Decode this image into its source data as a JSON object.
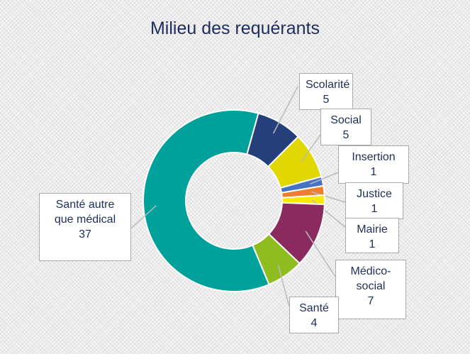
{
  "chart_data": {
    "type": "donut",
    "title": "Milieu des requérants",
    "categories": [
      "Scolarité",
      "Social",
      "Insertion",
      "Justice",
      "Mairie",
      "Médico-social",
      "Santé",
      "Santé autre que médical"
    ],
    "values": [
      5,
      5,
      1,
      1,
      1,
      7,
      4,
      37
    ],
    "colors": [
      "#243f7a",
      "#e0d800",
      "#4472c4",
      "#ed7d31",
      "#f7ec00",
      "#8b2a5e",
      "#8fbc1f",
      "#00a19a"
    ]
  }
}
